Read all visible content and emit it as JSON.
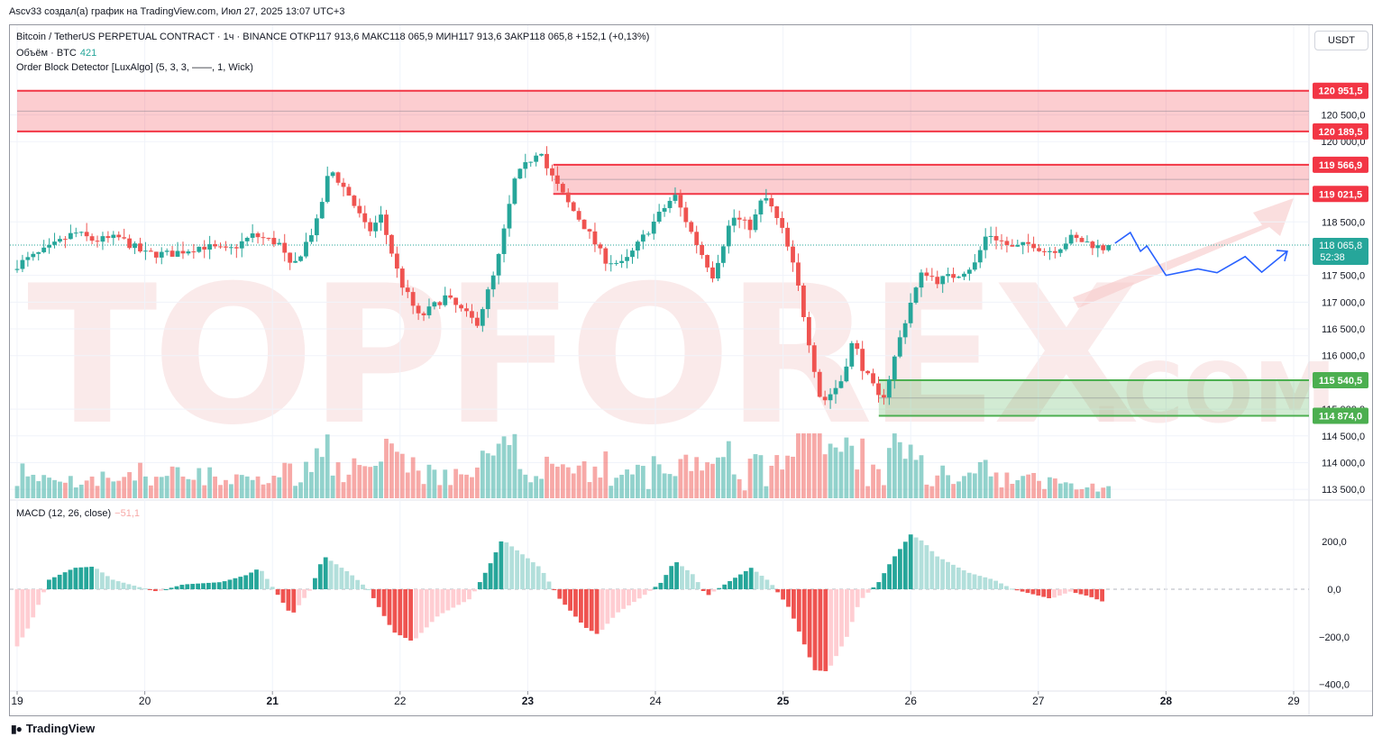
{
  "header": {
    "author_line": "Ascv33 создал(а) график на TradingView.com, Июл 27, 2025 13:07 UTC+3"
  },
  "legend": {
    "symbol_line": "Bitcoin / TetherUS PERPETUAL CONTRACT · 1ч · BINANCE  ОТКР117 913,6  МАКС118 065,9  МИН117 913,6  ЗАКР118 065,8  +152,1 (+0,13%)",
    "volume_label": "Объём · BTC",
    "volume_value": "421",
    "indicator_line": "Order Block Detector [LuxAlgo] (5, 3, 3, ——, 1, Wick)",
    "macd_label": "MACD (12, 26, close)",
    "macd_value": "−51,1"
  },
  "currency_button": "USDT",
  "branding": {
    "name": "TradingView",
    "watermark": "TOPFOREX.COM"
  },
  "colors": {
    "up": "#26a69a",
    "down": "#ef5350",
    "up_light": "#b2dfdb",
    "down_light": "#ffcdd2",
    "bear_ob": "#f23645",
    "bull_ob": "#4caf50",
    "projection": "#2962ff"
  },
  "chart_data": [
    {
      "type": "candlestick",
      "symbol": "BTCUSDT.P",
      "interval": "1h",
      "ylim": [
        113300,
        121300
      ],
      "y_ticks": [
        {
          "value": 120500,
          "label": "120 500,0"
        },
        {
          "value": 120000,
          "label": "120 000,0"
        },
        {
          "value": 118500,
          "label": "118 500,0"
        },
        {
          "value": 117500,
          "label": "117 500,0"
        },
        {
          "value": 117000,
          "label": "117 000,0"
        },
        {
          "value": 116500,
          "label": "116 500,0"
        },
        {
          "value": 116000,
          "label": "116 000,0"
        },
        {
          "value": 115000,
          "label": "115 000,0"
        },
        {
          "value": 114500,
          "label": "114 500,0"
        },
        {
          "value": 114000,
          "label": "114 000,0"
        },
        {
          "value": 113500,
          "label": "113 500,0"
        }
      ],
      "x_ticks": [
        "19",
        "20",
        "21",
        "22",
        "23",
        "24",
        "25",
        "26",
        "27",
        "28",
        "29"
      ],
      "price_labels": [
        {
          "value": 120951.5,
          "label": "120 951,5",
          "kind": "bear"
        },
        {
          "value": 120189.5,
          "label": "120 189,5",
          "kind": "bear"
        },
        {
          "value": 119566.9,
          "label": "119 566,9",
          "kind": "bear"
        },
        {
          "value": 119021.5,
          "label": "119 021,5",
          "kind": "bear"
        },
        {
          "value": 115540.5,
          "label": "115 540,5",
          "kind": "bull"
        },
        {
          "value": 114874.0,
          "label": "114 874,0",
          "kind": "bull"
        }
      ],
      "last_price": {
        "value": 118065.8,
        "label": "118 065,8",
        "countdown": "52:38"
      },
      "order_blocks": [
        {
          "kind": "bearish",
          "top": 120951.5,
          "bottom": 120189.5,
          "start_day": 19.0
        },
        {
          "kind": "bearish",
          "top": 119566.9,
          "bottom": 119021.5,
          "start_day": 23.2
        },
        {
          "kind": "bullish",
          "top": 115540.5,
          "bottom": 114874.0,
          "start_day": 25.75
        }
      ],
      "anchors": [
        [
          19.0,
          117700
        ],
        [
          19.25,
          118000
        ],
        [
          19.45,
          118300
        ],
        [
          19.6,
          118150
        ],
        [
          19.8,
          118200
        ],
        [
          20.0,
          117900
        ],
        [
          20.2,
          117900
        ],
        [
          20.45,
          118050
        ],
        [
          20.65,
          117950
        ],
        [
          20.85,
          118250
        ],
        [
          21.05,
          118100
        ],
        [
          21.15,
          117600
        ],
        [
          21.35,
          118500
        ],
        [
          21.45,
          119500
        ],
        [
          21.6,
          119000
        ],
        [
          21.75,
          118300
        ],
        [
          21.85,
          118600
        ],
        [
          22.0,
          117400
        ],
        [
          22.15,
          116700
        ],
        [
          22.35,
          117100
        ],
        [
          22.6,
          116600
        ],
        [
          22.75,
          117600
        ],
        [
          22.9,
          119300
        ],
        [
          23.0,
          119600
        ],
        [
          23.1,
          119900
        ],
        [
          23.15,
          119500
        ],
        [
          23.3,
          118900
        ],
        [
          23.45,
          118400
        ],
        [
          23.6,
          117800
        ],
        [
          23.75,
          117700
        ],
        [
          23.9,
          118200
        ],
        [
          24.05,
          118700
        ],
        [
          24.15,
          119000
        ],
        [
          24.3,
          118200
        ],
        [
          24.45,
          117500
        ],
        [
          24.6,
          118600
        ],
        [
          24.75,
          118400
        ],
        [
          24.85,
          119000
        ],
        [
          24.9,
          118800
        ],
        [
          25.0,
          118300
        ],
        [
          25.1,
          117500
        ],
        [
          25.2,
          116300
        ],
        [
          25.3,
          115100
        ],
        [
          25.45,
          115500
        ],
        [
          25.55,
          116300
        ],
        [
          25.62,
          115800
        ],
        [
          25.75,
          115200
        ],
        [
          25.8,
          115300
        ],
        [
          25.9,
          116200
        ],
        [
          26.0,
          117000
        ],
        [
          26.1,
          117600
        ],
        [
          26.2,
          117400
        ],
        [
          26.35,
          117500
        ],
        [
          26.5,
          117700
        ],
        [
          26.6,
          118300
        ],
        [
          26.8,
          118000
        ],
        [
          26.95,
          118100
        ],
        [
          27.05,
          117950
        ],
        [
          27.15,
          118000
        ],
        [
          27.25,
          118200
        ],
        [
          27.4,
          118100
        ],
        [
          27.5,
          118000
        ],
        [
          27.55,
          118065.8
        ]
      ],
      "projection": [
        [
          27.6,
          118100
        ],
        [
          27.72,
          118300
        ],
        [
          27.8,
          117950
        ],
        [
          27.85,
          118050
        ],
        [
          28.0,
          117500
        ],
        [
          28.25,
          117620
        ],
        [
          28.4,
          117550
        ],
        [
          28.62,
          117850
        ],
        [
          28.75,
          117560
        ],
        [
          28.95,
          117950
        ]
      ]
    },
    {
      "type": "bar",
      "name": "Volume",
      "series_note": "Объём · BTC 421",
      "last_value": 421
    },
    {
      "type": "bar",
      "name": "MACD (12, 26, close)",
      "last_value": -51.1,
      "ylim": [
        -420,
        280
      ],
      "y_ticks": [
        {
          "value": 200,
          "label": "200,0"
        },
        {
          "value": 0,
          "label": "0,0"
        },
        {
          "value": -200,
          "label": "−200,0"
        },
        {
          "value": -400,
          "label": "−400,0"
        }
      ],
      "anchors": [
        [
          19.0,
          -240
        ],
        [
          19.1,
          -150
        ],
        [
          19.25,
          40
        ],
        [
          19.45,
          90
        ],
        [
          19.6,
          95
        ],
        [
          19.75,
          40
        ],
        [
          19.95,
          10
        ],
        [
          20.1,
          -10
        ],
        [
          20.3,
          20
        ],
        [
          20.6,
          30
        ],
        [
          20.8,
          60
        ],
        [
          20.9,
          90
        ],
        [
          21.05,
          -30
        ],
        [
          21.15,
          -110
        ],
        [
          21.3,
          0
        ],
        [
          21.4,
          140
        ],
        [
          21.6,
          70
        ],
        [
          21.75,
          0
        ],
        [
          21.95,
          -180
        ],
        [
          22.1,
          -220
        ],
        [
          22.3,
          -110
        ],
        [
          22.55,
          -40
        ],
        [
          22.7,
          100
        ],
        [
          22.8,
          210
        ],
        [
          22.95,
          150
        ],
        [
          23.1,
          90
        ],
        [
          23.25,
          -40
        ],
        [
          23.45,
          -160
        ],
        [
          23.55,
          -190
        ],
        [
          23.7,
          -100
        ],
        [
          23.9,
          -30
        ],
        [
          24.05,
          30
        ],
        [
          24.15,
          120
        ],
        [
          24.3,
          60
        ],
        [
          24.4,
          -30
        ],
        [
          24.6,
          40
        ],
        [
          24.75,
          90
        ],
        [
          24.9,
          30
        ],
        [
          25.05,
          -80
        ],
        [
          25.25,
          -340
        ],
        [
          25.35,
          -345
        ],
        [
          25.5,
          -200
        ],
        [
          25.6,
          -50
        ],
        [
          25.75,
          30
        ],
        [
          25.85,
          120
        ],
        [
          26.0,
          230
        ],
        [
          26.1,
          200
        ],
        [
          26.2,
          140
        ],
        [
          26.45,
          70
        ],
        [
          26.65,
          40
        ],
        [
          26.8,
          0
        ],
        [
          26.95,
          -20
        ],
        [
          27.1,
          -40
        ],
        [
          27.25,
          -10
        ],
        [
          27.4,
          -30
        ],
        [
          27.5,
          -51.1
        ]
      ]
    }
  ]
}
